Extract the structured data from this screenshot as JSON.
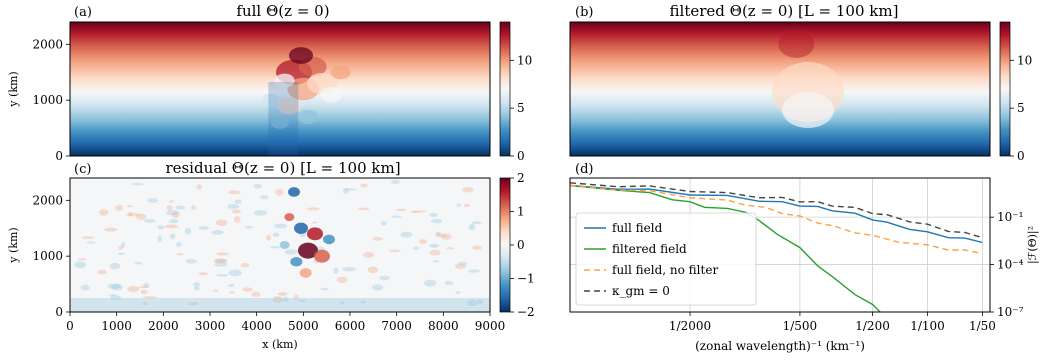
{
  "colormap": {
    "name": "RdBu_r",
    "stops": [
      "#053061",
      "#2166ac",
      "#4393c3",
      "#92c5de",
      "#d1e5f0",
      "#f7f7f7",
      "#fddbc7",
      "#f4a582",
      "#d6604d",
      "#b2182b",
      "#67001f"
    ]
  },
  "chart_data": [
    {
      "type": "heatmap",
      "label": "(a)",
      "title": "full Θ(z = 0)",
      "ylabel": "y (km)",
      "xlim": [
        0,
        9000
      ],
      "ylim": [
        0,
        2400
      ],
      "yticks": [
        0,
        1000,
        2000
      ],
      "colorbar": {
        "min": 0,
        "max": 14,
        "ticks": [
          0,
          5,
          10
        ]
      },
      "field": "full meridional temperature gradient, warm (red) in north, cold (blue) in south, turbulent eddies near x≈5000 km"
    },
    {
      "type": "heatmap",
      "label": "(b)",
      "title": "filtered Θ(z = 0) [L = 100 km]",
      "xlim": [
        0,
        9000
      ],
      "ylim": [
        0,
        2400
      ],
      "colorbar": {
        "min": 0,
        "max": 14,
        "ticks": [
          0,
          5,
          10
        ]
      },
      "field": "smoothed version with dip in isotherms near x≈5000 km"
    },
    {
      "type": "heatmap",
      "label": "(c)",
      "title": "residual Θ(z = 0) [L = 100 km]",
      "ylabel": "y (km)",
      "xlabel": "x (km)",
      "xlim": [
        0,
        9000
      ],
      "ylim": [
        0,
        2400
      ],
      "xticks": [
        0,
        1000,
        2000,
        3000,
        4000,
        5000,
        6000,
        7000,
        8000,
        9000
      ],
      "yticks": [
        0,
        1000,
        2000
      ],
      "colorbar": {
        "min": -2,
        "max": 2,
        "ticks": [
          -2,
          -1,
          0,
          1,
          2
        ],
        "ticklabels": [
          "−2",
          "−1",
          "0",
          "1",
          "2"
        ]
      },
      "field": "small-scale residual anomalies concentrated near x≈5000 km"
    },
    {
      "type": "line",
      "label": "(d)",
      "xlabel": "(zonal wavelength)⁻¹ (km⁻¹)",
      "ylabel": "|ℱ(Θ)|²",
      "xscale": "log",
      "yscale": "log",
      "xlim": [
        0.00011,
        0.022
      ],
      "ylim": [
        1e-07,
        30
      ],
      "xticks": [
        0.0005,
        0.002,
        0.005,
        0.01,
        0.02
      ],
      "xticklabels": [
        "1/2000",
        "1/500",
        "1/200",
        "1/100",
        "1/50"
      ],
      "yticks": [
        1e-07,
        0.0001,
        0.1
      ],
      "yticklabels": [
        "10⁻⁷",
        "10⁻⁴",
        "10⁻¹"
      ],
      "grid": true,
      "legend": "lower-left",
      "series": [
        {
          "name": "full field",
          "color": "#1f77b4",
          "dash": "",
          "x": [
            0.00011,
            0.0002,
            0.0003,
            0.0005,
            0.0008,
            0.0012,
            0.0016,
            0.002,
            0.0025,
            0.003,
            0.004,
            0.005,
            0.006,
            0.008,
            0.01,
            0.013,
            0.016,
            0.02
          ],
          "y": [
            10,
            7,
            5,
            3,
            2,
            1.2,
            0.8,
            0.6,
            0.4,
            0.3,
            0.15,
            0.08,
            0.04,
            0.02,
            0.01,
            0.006,
            0.004,
            0.0025
          ]
        },
        {
          "name": "filtered field",
          "color": "#2ca02c",
          "dash": "",
          "x": [
            0.00011,
            0.0002,
            0.0003,
            0.0004,
            0.0005,
            0.0006,
            0.0008,
            0.001,
            0.0012,
            0.0015,
            0.002,
            0.0025,
            0.003,
            0.004,
            0.005,
            0.0055
          ],
          "y": [
            10,
            6,
            3,
            1.5,
            0.8,
            0.5,
            0.3,
            0.25,
            0.05,
            0.01,
            0.001,
            0.0001,
            1.5e-05,
            1.5e-06,
            2.5e-07,
            1e-07
          ]
        },
        {
          "name": "full field, no filter",
          "color": "#ff9f43",
          "dash": "6,4",
          "x": [
            0.00011,
            0.0002,
            0.0003,
            0.0005,
            0.0008,
            0.001,
            0.0013,
            0.0016,
            0.002,
            0.0025,
            0.003,
            0.004,
            0.005,
            0.007,
            0.01,
            0.013,
            0.016,
            0.02
          ],
          "y": [
            10,
            6,
            4,
            2,
            1,
            0.7,
            0.35,
            0.2,
            0.1,
            0.05,
            0.025,
            0.012,
            0.006,
            0.003,
            0.0015,
            0.001,
            0.0007,
            0.0005
          ]
        },
        {
          "name": "κ_gm = 0",
          "color": "#444444",
          "dash": "6,4",
          "x": [
            0.00011,
            0.0002,
            0.0003,
            0.0005,
            0.0008,
            0.0012,
            0.0016,
            0.002,
            0.0025,
            0.003,
            0.004,
            0.005,
            0.006,
            0.008,
            0.01,
            0.013,
            0.016,
            0.02
          ],
          "y": [
            15,
            10,
            8,
            5,
            3,
            2,
            1.5,
            1.1,
            0.8,
            0.6,
            0.35,
            0.2,
            0.12,
            0.06,
            0.03,
            0.015,
            0.009,
            0.005
          ]
        }
      ]
    }
  ]
}
